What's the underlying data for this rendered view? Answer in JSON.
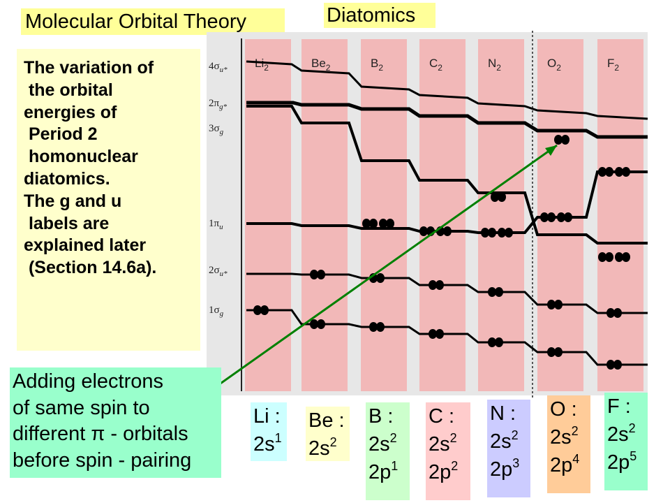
{
  "title": "Molecular Orbital Theory",
  "subtitle": "Diatomics",
  "description": [
    "The variation of",
    " the orbital",
    "energies of",
    " Period 2",
    " homonuclear",
    "diatomics.",
    "The g and u",
    " labels are",
    "explained later",
    " (Section 14.6a)."
  ],
  "callout": [
    "Adding electrons",
    "of same spin to",
    "different π - orbitals",
    "before spin - pairing"
  ],
  "orbital_labels": [
    {
      "base": "4σ",
      "sub": "u*"
    },
    {
      "base": "2π",
      "sub": "g*"
    },
    {
      "base": "3σ",
      "sub": "g"
    },
    {
      "base": "1π",
      "sub": "u"
    },
    {
      "base": "2σ",
      "sub": "u*"
    },
    {
      "base": "1σ",
      "sub": "g"
    }
  ],
  "molecules": [
    {
      "base": "Li",
      "sub": "2"
    },
    {
      "base": "Be",
      "sub": "2"
    },
    {
      "base": "B",
      "sub": "2"
    },
    {
      "base": "C",
      "sub": "2"
    },
    {
      "base": "N",
      "sub": "2"
    },
    {
      "base": "O",
      "sub": "2"
    },
    {
      "base": "F",
      "sub": "2"
    }
  ],
  "configurations": [
    {
      "atom": "Li :",
      "lines": [
        {
          "orb": "2s",
          "exp": "1"
        }
      ],
      "color": "#ccffff"
    },
    {
      "atom": "Be :",
      "lines": [
        {
          "orb": "2s",
          "exp": "2"
        }
      ],
      "color": "#ffffcc"
    },
    {
      "atom": "B :",
      "lines": [
        {
          "orb": "2s",
          "exp": "2"
        },
        {
          "orb": "2p",
          "exp": "1"
        }
      ],
      "color": "#ccffcc"
    },
    {
      "atom": "C :",
      "lines": [
        {
          "orb": "2s",
          "exp": "2"
        },
        {
          "orb": "2p",
          "exp": "2"
        }
      ],
      "color": "#ffcccc"
    },
    {
      "atom": "N :",
      "lines": [
        {
          "orb": "2s",
          "exp": "2"
        },
        {
          "orb": "2p",
          "exp": "3"
        }
      ],
      "color": "#ccccff"
    },
    {
      "atom": "O :",
      "lines": [
        {
          "orb": "2s",
          "exp": "2"
        },
        {
          "orb": "2p",
          "exp": "4"
        }
      ],
      "color": "#ffcc99"
    },
    {
      "atom": "F :",
      "lines": [
        {
          "orb": "2s",
          "exp": "2"
        },
        {
          "orb": "2p",
          "exp": "5"
        }
      ],
      "color": "#99ffcc"
    }
  ],
  "colors": {
    "column": "#f2b8b8",
    "arrow": "#008000",
    "title_bg": "#ffff99",
    "description_bg": "#ffffcc",
    "callout_bg": "#99ffcc"
  }
}
